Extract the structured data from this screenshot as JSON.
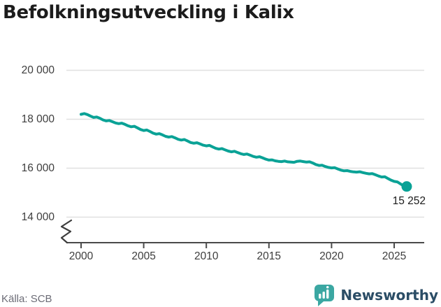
{
  "title": "Befolkningsutveckling i Kalix",
  "source": "Källa: SCB",
  "brand": {
    "name": "Newsworthy",
    "icon": "newsworthy-bar-chart-bubble-icon",
    "icon_color": "#3ba7a2",
    "text_color": "#2b4d66"
  },
  "colors": {
    "line": "#0aa296",
    "grid": "#e0e0e0",
    "axis": "#4a4a4a",
    "axis_text": "#3d3d3d",
    "title_text": "#1c1c1c",
    "annotation_text": "#1a1a1a",
    "source_text": "#6c6c76"
  },
  "chart_data": {
    "type": "line",
    "title": "Befolkningsutveckling i Kalix",
    "xlabel": "",
    "ylabel": "",
    "grid": "horizontal",
    "axis_break_below": 14000,
    "x_ticks": [
      2000,
      2005,
      2010,
      2015,
      2020,
      2025
    ],
    "x_tick_labels": [
      "2000",
      "2005",
      "2010",
      "2015",
      "2020",
      "2025"
    ],
    "y_tick_values": [
      20000,
      18000,
      16000,
      14000
    ],
    "y_tick_labels": [
      "20 000",
      "18 000",
      "16 000",
      "14 000"
    ],
    "xlim": [
      1998.8,
      2027.4
    ],
    "ylim": [
      14000,
      21000
    ],
    "end_label": "15 252",
    "end_point": {
      "x": 2026.0,
      "y": 15252
    },
    "series": [
      {
        "name": "Befolkning",
        "x_start": 2000.0,
        "x_step": 0.25,
        "y": [
          18200,
          18230,
          18190,
          18130,
          18075,
          18090,
          18040,
          17970,
          17930,
          17950,
          17900,
          17850,
          17820,
          17840,
          17790,
          17730,
          17690,
          17710,
          17650,
          17580,
          17540,
          17560,
          17500,
          17430,
          17390,
          17410,
          17360,
          17300,
          17270,
          17290,
          17240,
          17180,
          17150,
          17170,
          17110,
          17050,
          17020,
          17040,
          16990,
          16940,
          16910,
          16930,
          16870,
          16810,
          16780,
          16800,
          16750,
          16700,
          16670,
          16690,
          16640,
          16590,
          16560,
          16580,
          16530,
          16480,
          16450,
          16470,
          16420,
          16370,
          16330,
          16340,
          16300,
          16280,
          16270,
          16290,
          16260,
          16250,
          16240,
          16280,
          16290,
          16270,
          16250,
          16260,
          16210,
          16150,
          16110,
          16120,
          16070,
          16030,
          16010,
          16020,
          15970,
          15920,
          15890,
          15900,
          15870,
          15850,
          15840,
          15855,
          15820,
          15790,
          15770,
          15780,
          15730,
          15680,
          15640,
          15650,
          15580,
          15510,
          15460,
          15440,
          15360,
          15280,
          15252
        ]
      }
    ]
  }
}
